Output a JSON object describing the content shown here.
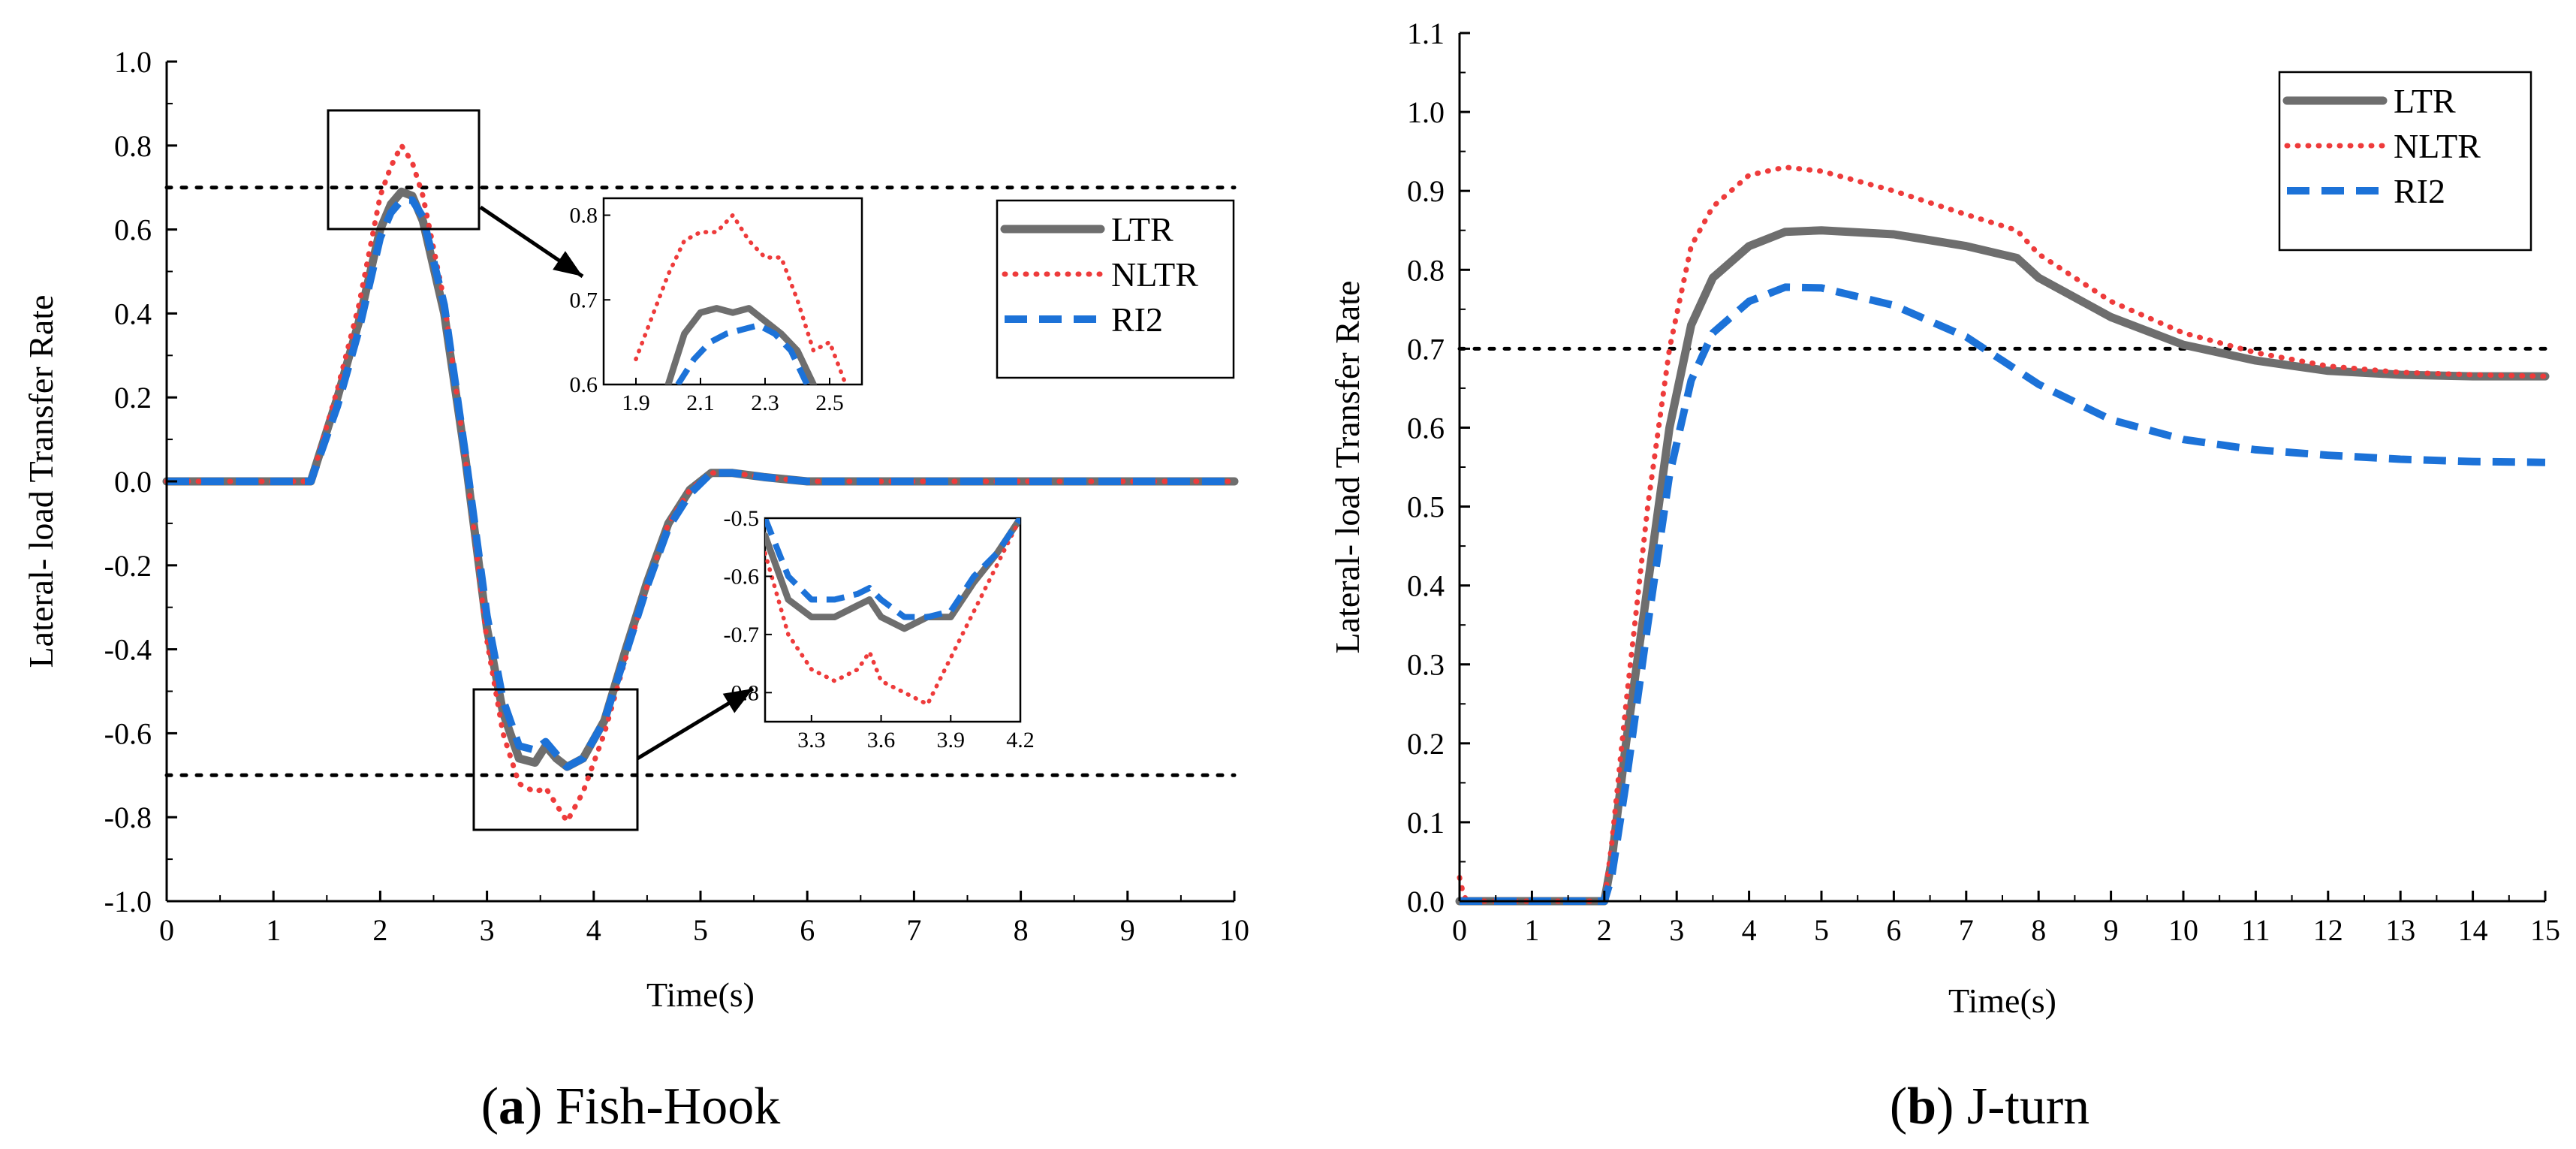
{
  "colors": {
    "ltr": "#6e6e6e",
    "nltr": "#ee3b3b",
    "ri2": "#1c72d8",
    "threshold": "#000000",
    "axis": "#000000"
  },
  "legend_items": [
    "LTR",
    "NLTR",
    "RI2"
  ],
  "chart_data": [
    {
      "type": "line",
      "id": "fish-hook",
      "caption_letter": "a",
      "caption_text": "Fish-Hook",
      "xlabel": "Time(s)",
      "ylabel": "Lateral- load Transfer Rate",
      "xlim": [
        0,
        10
      ],
      "ylim": [
        -1.0,
        1.0
      ],
      "x_ticks": [
        0,
        1,
        2,
        3,
        4,
        5,
        6,
        7,
        8,
        9,
        10
      ],
      "x_tick_labels": [
        "0",
        "1",
        "2",
        "3",
        "4",
        "5",
        "6",
        "7",
        "8",
        "9",
        "10"
      ],
      "y_ticks": [
        -1.0,
        -0.8,
        -0.6,
        -0.4,
        -0.2,
        0.0,
        0.2,
        0.4,
        0.6,
        0.8,
        1.0
      ],
      "y_tick_labels": [
        "-1.0",
        "-0.8",
        "-0.6",
        "-0.4",
        "-0.2",
        "0.0",
        "0.2",
        "0.4",
        "0.6",
        "0.8",
        "1.0"
      ],
      "thresholds": [
        0.7,
        -0.7
      ],
      "series": [
        {
          "name": "LTR",
          "x": [
            0,
            1.35,
            1.6,
            1.8,
            2.0,
            2.1,
            2.2,
            2.3,
            2.4,
            2.6,
            2.8,
            3.0,
            3.15,
            3.3,
            3.45,
            3.55,
            3.65,
            3.75,
            3.9,
            4.1,
            4.3,
            4.5,
            4.7,
            4.9,
            5.1,
            5.3,
            5.6,
            6.0,
            10
          ],
          "y": [
            0,
            0,
            0.2,
            0.38,
            0.6,
            0.66,
            0.69,
            0.68,
            0.62,
            0.4,
            0.05,
            -0.35,
            -0.55,
            -0.66,
            -0.67,
            -0.63,
            -0.66,
            -0.68,
            -0.66,
            -0.57,
            -0.4,
            -0.24,
            -0.1,
            -0.02,
            0.02,
            0.02,
            0.01,
            0.0,
            0.0
          ]
        },
        {
          "name": "NLTR",
          "x": [
            0,
            1.35,
            1.6,
            1.8,
            2.0,
            2.1,
            2.2,
            2.3,
            2.4,
            2.6,
            2.8,
            3.0,
            3.15,
            3.3,
            3.45,
            3.55,
            3.65,
            3.75,
            3.9,
            4.1,
            4.3,
            4.5,
            4.7,
            4.9,
            5.1,
            5.3,
            5.6,
            6.0,
            10
          ],
          "y": [
            0,
            0,
            0.22,
            0.42,
            0.68,
            0.75,
            0.8,
            0.76,
            0.68,
            0.43,
            0.05,
            -0.38,
            -0.6,
            -0.72,
            -0.74,
            -0.73,
            -0.77,
            -0.81,
            -0.74,
            -0.6,
            -0.42,
            -0.25,
            -0.1,
            -0.02,
            0.02,
            0.02,
            0.01,
            0.0,
            0.0
          ]
        },
        {
          "name": "RI2",
          "x": [
            0,
            1.35,
            1.6,
            1.8,
            2.0,
            2.1,
            2.2,
            2.3,
            2.4,
            2.6,
            2.8,
            3.0,
            3.15,
            3.3,
            3.45,
            3.55,
            3.65,
            3.75,
            3.9,
            4.1,
            4.3,
            4.5,
            4.7,
            4.9,
            5.1,
            5.3,
            5.6,
            6.0,
            10
          ],
          "y": [
            0,
            0,
            0.18,
            0.36,
            0.58,
            0.64,
            0.67,
            0.67,
            0.63,
            0.42,
            0.06,
            -0.32,
            -0.52,
            -0.63,
            -0.64,
            -0.62,
            -0.65,
            -0.68,
            -0.66,
            -0.57,
            -0.41,
            -0.25,
            -0.11,
            -0.03,
            0.02,
            0.02,
            0.01,
            0.0,
            0.0
          ]
        }
      ],
      "insets": [
        {
          "xlim": [
            1.8,
            2.6
          ],
          "ylim": [
            0.6,
            0.82
          ],
          "x_ticks": [
            1.9,
            2.1,
            2.3,
            2.5
          ],
          "x_tick_labels": [
            "1.9",
            "2.1",
            "2.3",
            "2.5"
          ],
          "y_ticks": [
            0.6,
            0.7,
            0.8
          ],
          "y_tick_labels": [
            "0.6",
            "0.7",
            "0.8"
          ],
          "series": [
            {
              "name": "LTR",
              "x": [
                2.0,
                2.05,
                2.1,
                2.15,
                2.2,
                2.25,
                2.3,
                2.35,
                2.4,
                2.45
              ],
              "y": [
                0.6,
                0.66,
                0.685,
                0.69,
                0.685,
                0.69,
                0.675,
                0.66,
                0.64,
                0.6
              ]
            },
            {
              "name": "NLTR",
              "x": [
                1.9,
                1.95,
                2.0,
                2.05,
                2.1,
                2.15,
                2.2,
                2.25,
                2.3,
                2.35,
                2.4,
                2.45,
                2.5,
                2.55
              ],
              "y": [
                0.63,
                0.68,
                0.73,
                0.77,
                0.78,
                0.78,
                0.8,
                0.77,
                0.75,
                0.75,
                0.7,
                0.64,
                0.65,
                0.6
              ]
            },
            {
              "name": "RI2",
              "x": [
                2.03,
                2.08,
                2.13,
                2.18,
                2.23,
                2.28,
                2.33,
                2.38,
                2.43
              ],
              "y": [
                0.6,
                0.63,
                0.65,
                0.66,
                0.665,
                0.67,
                0.66,
                0.64,
                0.6
              ]
            }
          ]
        },
        {
          "xlim": [
            3.1,
            4.2
          ],
          "ylim": [
            -0.85,
            -0.5
          ],
          "x_ticks": [
            3.3,
            3.6,
            3.9,
            4.2
          ],
          "x_tick_labels": [
            "3.3",
            "3.6",
            "3.9",
            "4.2"
          ],
          "y_ticks": [
            -0.8,
            -0.7,
            -0.6,
            -0.5
          ],
          "y_tick_labels": [
            "-0.8",
            "-0.7",
            "-0.6",
            "-0.5"
          ],
          "series": [
            {
              "name": "LTR",
              "x": [
                3.1,
                3.2,
                3.3,
                3.4,
                3.5,
                3.55,
                3.6,
                3.7,
                3.8,
                3.9,
                4.0,
                4.1,
                4.2
              ],
              "y": [
                -0.53,
                -0.64,
                -0.67,
                -0.67,
                -0.65,
                -0.64,
                -0.67,
                -0.69,
                -0.67,
                -0.67,
                -0.61,
                -0.56,
                -0.5
              ]
            },
            {
              "name": "NLTR",
              "x": [
                3.1,
                3.2,
                3.3,
                3.4,
                3.5,
                3.55,
                3.6,
                3.7,
                3.8,
                3.9,
                4.0,
                4.1,
                4.2
              ],
              "y": [
                -0.56,
                -0.7,
                -0.76,
                -0.78,
                -0.76,
                -0.73,
                -0.78,
                -0.8,
                -0.82,
                -0.74,
                -0.66,
                -0.58,
                -0.5
              ]
            },
            {
              "name": "RI2",
              "x": [
                3.1,
                3.2,
                3.3,
                3.4,
                3.5,
                3.55,
                3.6,
                3.7,
                3.8,
                3.9,
                4.0,
                4.1,
                4.2
              ],
              "y": [
                -0.5,
                -0.6,
                -0.64,
                -0.64,
                -0.63,
                -0.62,
                -0.64,
                -0.67,
                -0.67,
                -0.66,
                -0.6,
                -0.56,
                -0.5
              ]
            }
          ]
        }
      ]
    },
    {
      "type": "line",
      "id": "j-turn",
      "caption_letter": "b",
      "caption_text": "J-turn",
      "xlabel": "Time(s)",
      "ylabel": "Lateral- load Transfer Rate",
      "xlim": [
        0,
        15
      ],
      "ylim": [
        0.0,
        1.1
      ],
      "x_ticks": [
        0,
        1,
        2,
        3,
        4,
        5,
        6,
        7,
        8,
        9,
        10,
        11,
        12,
        13,
        14,
        15
      ],
      "x_tick_labels": [
        "0",
        "1",
        "2",
        "3",
        "4",
        "5",
        "6",
        "7",
        "8",
        "9",
        "10",
        "11",
        "12",
        "13",
        "14",
        "15"
      ],
      "y_ticks": [
        0.0,
        0.1,
        0.2,
        0.3,
        0.4,
        0.5,
        0.6,
        0.7,
        0.8,
        0.9,
        1.0,
        1.1
      ],
      "y_tick_labels": [
        "0.0",
        "0.1",
        "0.2",
        "0.3",
        "0.4",
        "0.5",
        "0.6",
        "0.7",
        "0.8",
        "0.9",
        "1.0",
        "1.1"
      ],
      "thresholds": [
        0.7
      ],
      "series": [
        {
          "name": "LTR",
          "x": [
            0,
            2.0,
            2.1,
            2.3,
            2.6,
            2.9,
            3.2,
            3.5,
            4.0,
            4.5,
            5.0,
            6.0,
            7.0,
            7.7,
            8.0,
            9.0,
            10.0,
            11.0,
            12.0,
            13.0,
            14.0,
            15.0
          ],
          "y": [
            0.0,
            0.0,
            0.05,
            0.2,
            0.4,
            0.6,
            0.73,
            0.79,
            0.83,
            0.848,
            0.85,
            0.845,
            0.83,
            0.815,
            0.79,
            0.74,
            0.705,
            0.685,
            0.672,
            0.667,
            0.665,
            0.665
          ]
        },
        {
          "name": "NLTR",
          "x": [
            0,
            0.05,
            0.1,
            2.0,
            2.1,
            2.3,
            2.6,
            2.9,
            3.2,
            3.5,
            4.0,
            4.5,
            5.0,
            6.0,
            7.0,
            7.7,
            8.0,
            9.0,
            10.0,
            11.0,
            12.0,
            13.0,
            14.0,
            15.0
          ],
          "y": [
            0.03,
            0.01,
            0.0,
            0.0,
            0.07,
            0.25,
            0.5,
            0.7,
            0.83,
            0.88,
            0.92,
            0.93,
            0.925,
            0.9,
            0.87,
            0.85,
            0.82,
            0.76,
            0.72,
            0.695,
            0.678,
            0.67,
            0.667,
            0.665
          ]
        },
        {
          "name": "RI2",
          "x": [
            0,
            2.0,
            2.1,
            2.3,
            2.6,
            2.9,
            3.2,
            3.5,
            4.0,
            4.5,
            5.0,
            6.0,
            7.0,
            8.0,
            9.0,
            10.0,
            11.0,
            12.0,
            13.0,
            14.0,
            15.0
          ],
          "y": [
            0.0,
            0.0,
            0.03,
            0.15,
            0.35,
            0.54,
            0.66,
            0.72,
            0.76,
            0.778,
            0.777,
            0.755,
            0.715,
            0.655,
            0.61,
            0.585,
            0.572,
            0.565,
            0.56,
            0.557,
            0.556
          ]
        }
      ]
    }
  ]
}
